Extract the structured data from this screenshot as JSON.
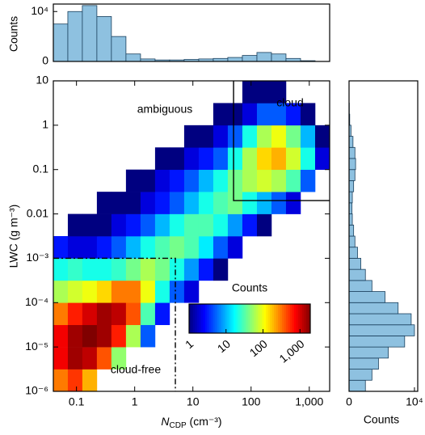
{
  "chart_data": [
    {
      "type": "heatmap",
      "xbins": [
        0.04,
        0.071,
        0.126,
        0.224,
        0.398,
        0.708,
        1.26,
        2.24,
        3.98,
        7.08,
        12.6,
        22.4,
        39.8,
        70.8,
        126,
        224,
        398,
        708,
        1260,
        2240
      ],
      "ybins": [
        1e-06,
        3.16e-06,
        1e-05,
        3.16e-05,
        0.0001,
        0.000316,
        0.001,
        0.00316,
        0.01,
        0.0316,
        0.1,
        0.316,
        1,
        3.16,
        10
      ],
      "values": [
        [
          300,
          500,
          200,
          null,
          null,
          null,
          null,
          null,
          null,
          null,
          null,
          null,
          null,
          null,
          null,
          null,
          null,
          null,
          null
        ],
        [
          800,
          1500,
          1200,
          400,
          50,
          null,
          null,
          null,
          null,
          null,
          null,
          null,
          null,
          null,
          null,
          null,
          null,
          null,
          null
        ],
        [
          800,
          1500,
          2000,
          1500,
          600,
          60,
          5,
          null,
          null,
          null,
          null,
          null,
          null,
          null,
          null,
          null,
          null,
          null,
          null
        ],
        [
          300,
          600,
          1000,
          1500,
          1200,
          400,
          30,
          3,
          null,
          null,
          null,
          null,
          null,
          null,
          null,
          null,
          null,
          null,
          null
        ],
        [
          60,
          80,
          100,
          150,
          300,
          300,
          100,
          20,
          5,
          2,
          null,
          null,
          null,
          null,
          null,
          null,
          null,
          null,
          null
        ],
        [
          20,
          25,
          20,
          20,
          25,
          40,
          60,
          40,
          20,
          8,
          3,
          1,
          null,
          null,
          null,
          null,
          null,
          null,
          null
        ],
        [
          3,
          2,
          2,
          3,
          5,
          10,
          20,
          30,
          40,
          30,
          15,
          5,
          2,
          null,
          null,
          null,
          null,
          null,
          null
        ],
        [
          null,
          1,
          1,
          1,
          2,
          3,
          5,
          10,
          20,
          30,
          30,
          20,
          8,
          3,
          1,
          null,
          null,
          null,
          null
        ],
        [
          null,
          null,
          null,
          1,
          1,
          1,
          2,
          3,
          5,
          10,
          20,
          30,
          40,
          20,
          10,
          5,
          2,
          null,
          null
        ],
        [
          null,
          null,
          null,
          null,
          null,
          1,
          1,
          2,
          3,
          5,
          10,
          20,
          40,
          60,
          80,
          60,
          30,
          5,
          null
        ],
        [
          null,
          null,
          null,
          null,
          null,
          null,
          null,
          1,
          1,
          2,
          3,
          5,
          20,
          60,
          150,
          200,
          80,
          20,
          2
        ],
        [
          null,
          null,
          null,
          null,
          null,
          null,
          null,
          null,
          null,
          1,
          1,
          2,
          5,
          20,
          60,
          100,
          40,
          10,
          1
        ],
        [
          null,
          null,
          null,
          null,
          null,
          null,
          null,
          null,
          null,
          null,
          null,
          1,
          1,
          2,
          5,
          5,
          3,
          1,
          null
        ],
        [
          null,
          null,
          null,
          null,
          null,
          null,
          null,
          null,
          null,
          null,
          null,
          null,
          null,
          1,
          1,
          1,
          null,
          null,
          null
        ]
      ],
      "log_x": true,
      "log_y": true,
      "xlim": [
        0.04,
        2240
      ],
      "xticks": [
        0.1,
        1,
        10,
        100,
        {
          "value": 1000,
          "label": "1,000"
        }
      ],
      "ylim": [
        1e-06,
        10
      ],
      "yticks": [
        {
          "value": 1e-06,
          "label": "10⁻⁶"
        },
        {
          "value": 1e-05,
          "label": "10⁻⁵"
        },
        {
          "value": 0.0001,
          "label": "10⁻⁴"
        },
        {
          "value": 0.001,
          "label": "10⁻³"
        },
        0.01,
        0.1,
        1,
        10
      ],
      "x_label": {
        "symbol": "N",
        "subscript": "CDP",
        "unit": " (cm⁻³)"
      },
      "y_label": "LWC (g m⁻³)",
      "colormap": "jet",
      "colorbar": {
        "label": "Counts",
        "lim": [
          1,
          1900
        ],
        "log": true,
        "ticks": [
          1,
          10,
          100,
          {
            "value": 1000,
            "label": "1,000"
          }
        ]
      },
      "annotations": [
        "ambiguous",
        "cloud",
        "cloud-free"
      ],
      "cloud_threshold": {
        "x": 50,
        "y": 0.02
      },
      "cloud_free_threshold": {
        "x": 5,
        "y": 0.001
      }
    },
    {
      "type": "histogram",
      "bins": [
        0.04,
        0.071,
        0.126,
        0.224,
        0.398,
        0.708,
        1.26,
        2.24,
        3.98,
        7.08,
        12.6,
        22.4,
        39.8,
        70.8,
        126,
        224,
        398,
        708,
        1260,
        2240
      ],
      "values": [
        7500,
        10000,
        11200,
        9000,
        5000,
        1500,
        500,
        300,
        300,
        400,
        500,
        600,
        800,
        1200,
        1800,
        1500,
        600,
        150,
        20
      ],
      "color": "#8ec1e0",
      "ylim": [
        0,
        11500
      ],
      "yticks": [
        0,
        {
          "value": 10000,
          "label": "10⁴"
        }
      ],
      "y_label": "Counts"
    },
    {
      "type": "histogram-horizontal",
      "bins": [
        1e-06,
        1.78e-06,
        3.16e-06,
        5.62e-06,
        1e-05,
        1.78e-05,
        3.16e-05,
        5.62e-05,
        0.0001,
        0.000178,
        0.000316,
        0.000562,
        0.001,
        0.00178,
        0.00316,
        0.00562,
        0.01,
        0.0178,
        0.0316,
        0.0562,
        0.1,
        0.178,
        0.316,
        0.562,
        1,
        1.78,
        3.16,
        5.62,
        10
      ],
      "values": [
        2500,
        3500,
        4500,
        6000,
        8500,
        10000,
        9500,
        7500,
        5500,
        3500,
        2500,
        1800,
        1300,
        900,
        700,
        500,
        450,
        500,
        700,
        900,
        1000,
        900,
        600,
        300,
        100,
        40,
        10,
        2
      ],
      "color": "#8ec1e0",
      "xlim": [
        0,
        10500
      ],
      "xticks": [
        0,
        {
          "value": 10000,
          "label": "10⁴"
        }
      ],
      "x_label": "Counts"
    }
  ]
}
